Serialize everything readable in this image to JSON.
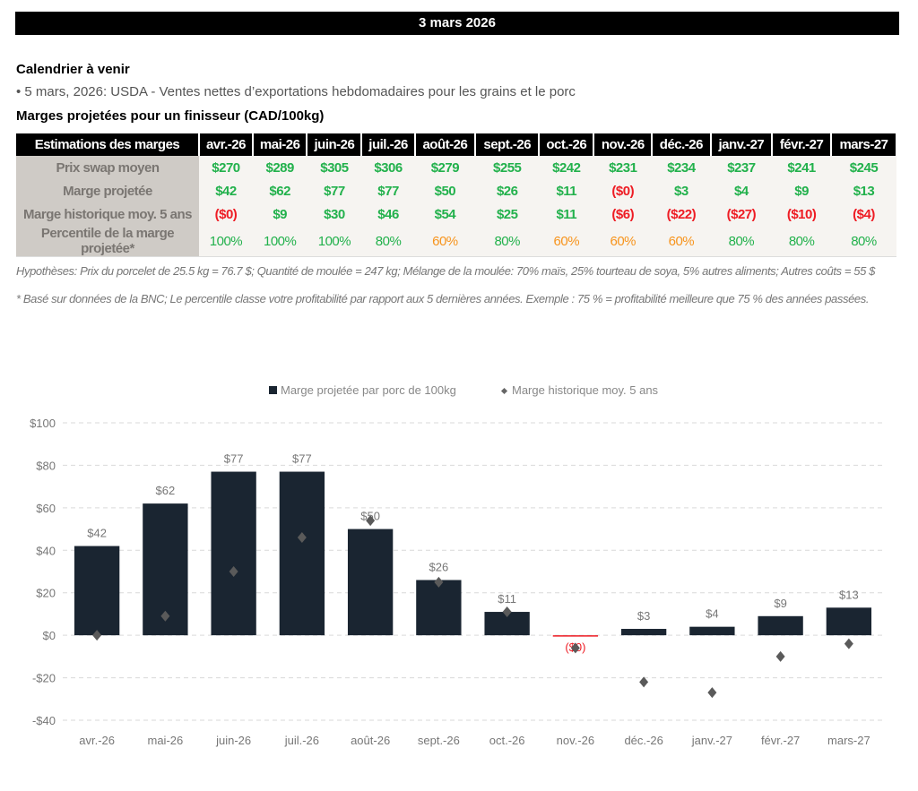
{
  "banner": {
    "date": "3 mars 2026"
  },
  "calendar": {
    "title": "Calendrier à venir",
    "items": [
      "• 5 mars, 2026: USDA - Ventes nettes d’exportations hebdomadaires pour les grains et le porc"
    ]
  },
  "margins_table": {
    "title": "Marges projetées pour un finisseur (CAD/100kg)",
    "header_label": "Estimations des marges",
    "months": [
      "avr.-26",
      "mai-26",
      "juin-26",
      "juil.-26",
      "août-26",
      "sept.-26",
      "oct.-26",
      "nov.-26",
      "déc.-26",
      "janv.-27",
      "févr.-27",
      "mars-27"
    ],
    "rows": [
      {
        "label": "Prix swap moyen",
        "values": [
          "$270",
          "$289",
          "$305",
          "$306",
          "$279",
          "$255",
          "$242",
          "$231",
          "$234",
          "$237",
          "$241",
          "$245"
        ],
        "colors": [
          "g",
          "g",
          "g",
          "g",
          "g",
          "g",
          "g",
          "g",
          "g",
          "g",
          "g",
          "g"
        ]
      },
      {
        "label": "Marge projetée",
        "values": [
          "$42",
          "$62",
          "$77",
          "$77",
          "$50",
          "$26",
          "$11",
          "($0)",
          "$3",
          "$4",
          "$9",
          "$13"
        ],
        "colors": [
          "g",
          "g",
          "g",
          "g",
          "g",
          "g",
          "g",
          "r",
          "g",
          "g",
          "g",
          "g"
        ]
      },
      {
        "label": "Marge historique moy. 5 ans",
        "values": [
          "($0)",
          "$9",
          "$30",
          "$46",
          "$54",
          "$25",
          "$11",
          "($6)",
          "($22)",
          "($27)",
          "($10)",
          "($4)"
        ],
        "colors": [
          "r",
          "g",
          "g",
          "g",
          "g",
          "g",
          "g",
          "r",
          "r",
          "r",
          "r",
          "r"
        ]
      },
      {
        "label": "Percentile de la marge projetée*",
        "values": [
          "100%",
          "100%",
          "100%",
          "80%",
          "60%",
          "80%",
          "60%",
          "60%",
          "60%",
          "80%",
          "80%",
          "80%"
        ],
        "colors": [
          "g",
          "g",
          "g",
          "g",
          "o",
          "g",
          "o",
          "o",
          "o",
          "g",
          "g",
          "g"
        ]
      }
    ],
    "notes": [
      "Hypothèses: Prix du porcelet de 25.5 kg = 76.7 $; Quantité de moulée = 247 kg; Mélange de la moulée: 70% maïs, 25% tourteau de soya, 5% autres aliments; Autres coûts = 55 $",
      "* Basé sur données de la BNC; Le percentile classe votre profitabilité par rapport aux 5 dernières années. Exemple : 75 % = profitabilité meilleure que 75 % des années passées."
    ]
  },
  "colors": {
    "green": "#22b14c",
    "red": "#ee1c24",
    "orange": "#f7941d",
    "bar": "#1a2531",
    "marker": "#5a5a5a"
  },
  "chart_data": {
    "type": "bar",
    "title": "",
    "xlabel": "",
    "ylabel": "",
    "ylim": [
      -40,
      100
    ],
    "yticks": [
      -40,
      -20,
      0,
      20,
      40,
      60,
      80,
      100
    ],
    "ytick_labels": [
      "-$40",
      "-$20",
      "$0",
      "$20",
      "$40",
      "$60",
      "$80",
      "$100"
    ],
    "grid": true,
    "legend_position": "top-center",
    "categories": [
      "avr.-26",
      "mai-26",
      "juin-26",
      "juil.-26",
      "août-26",
      "sept.-26",
      "oct.-26",
      "nov.-26",
      "déc.-26",
      "janv.-27",
      "févr.-27",
      "mars-27"
    ],
    "series": [
      {
        "name": "Marge projetée par porc de 100kg",
        "kind": "bar",
        "values": [
          42,
          62,
          77,
          77,
          50,
          26,
          11,
          -0.3,
          3,
          4,
          9,
          13
        ],
        "labels": [
          "$42",
          "$62",
          "$77",
          "$77",
          "$50",
          "$26",
          "$11",
          "($0)",
          "$3",
          "$4",
          "$9",
          "$13"
        ]
      },
      {
        "name": "Marge historique moy. 5 ans",
        "kind": "marker",
        "values": [
          0,
          9,
          30,
          46,
          54,
          25,
          11,
          -6,
          -22,
          -27,
          -10,
          -4
        ]
      }
    ]
  }
}
